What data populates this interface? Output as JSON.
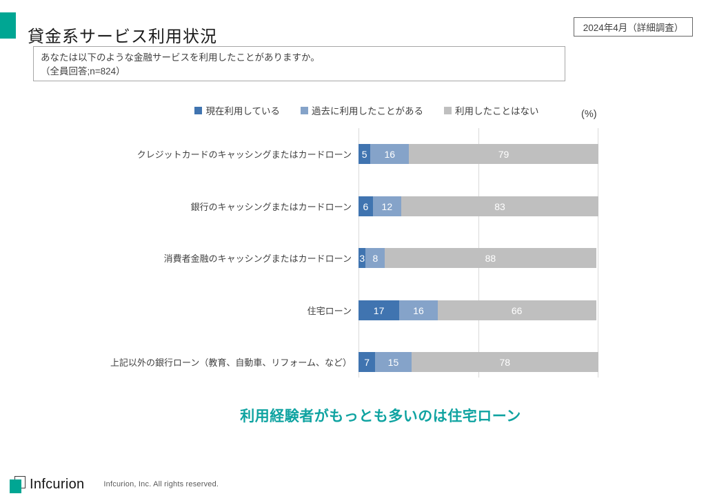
{
  "slide": {
    "title": "貸金系サービス利用状況",
    "date_badge": "2024年4月（詳細調査）",
    "question_line1": "あなたは以下のような金融サービスを利用したことがありますか。",
    "question_line2": "（全員回答;n=824）",
    "unit_label": "(%)",
    "takeaway": "利用経験者がもっとも多いのは住宅ローン",
    "accent_color": "#00A693",
    "takeaway_color": "#0FA3A1"
  },
  "chart_data": {
    "type": "bar",
    "orientation": "horizontal",
    "stacked": true,
    "unit": "%",
    "xlim": [
      0,
      100
    ],
    "grid": "vertical gridlines at 0, 50 and 100",
    "legend_position": "top",
    "categories": [
      "クレジットカードのキャッシングまたはカードローン",
      "銀行のキャッシングまたはカードローン",
      "消費者金融のキャッシングまたはカードローン",
      "住宅ローン",
      "上記以外の銀行ローン（教育、自動車、リフォーム、など）"
    ],
    "series": [
      {
        "name": "現在利用している",
        "color": "#4074B0",
        "values": [
          5,
          6,
          3,
          17,
          7
        ]
      },
      {
        "name": "過去に利用したことがある",
        "color": "#85A3C9",
        "values": [
          16,
          12,
          8,
          16,
          15
        ]
      },
      {
        "name": "利用したことはない",
        "color": "#BFBFBF",
        "values": [
          79,
          83,
          88,
          66,
          78
        ]
      }
    ],
    "gridline_color": "#D9D9D9"
  },
  "footer": {
    "brand": "Infcurion",
    "copyright": "Infcurion, Inc.  All rights reserved."
  }
}
